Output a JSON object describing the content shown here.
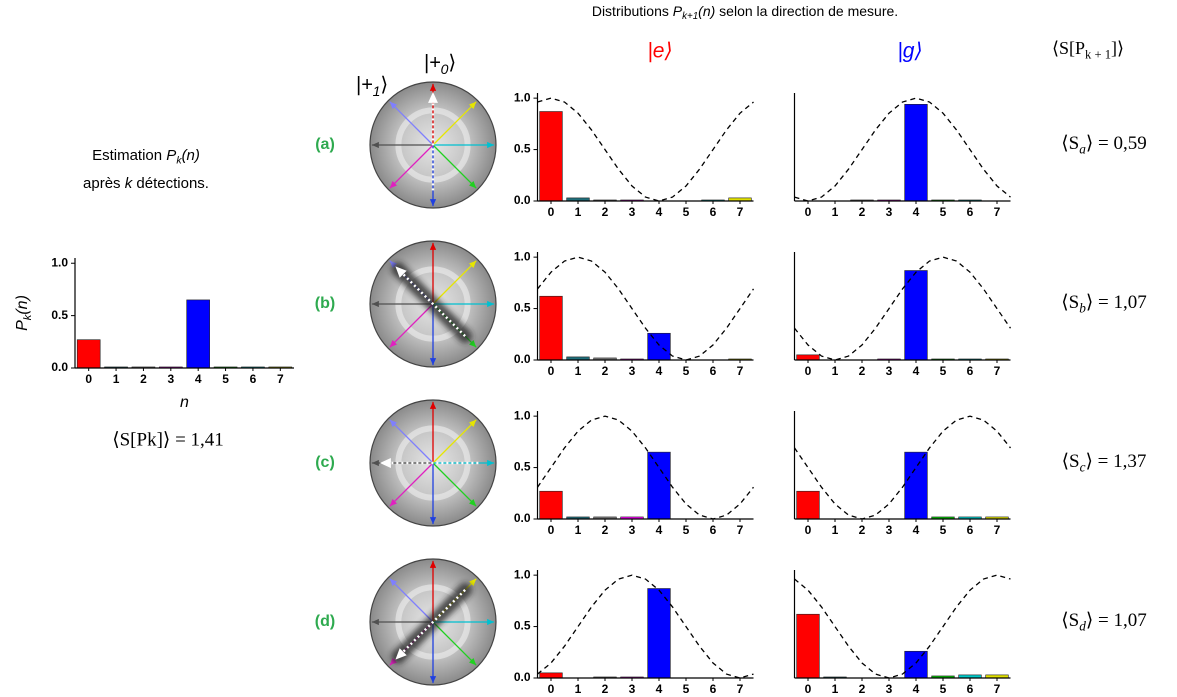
{
  "header": {
    "text1": "Distributions ",
    "sym": "P",
    "sub": "k+1",
    "arg": "(n)",
    "text2": " selon la direction de mesure."
  },
  "column_labels": [
    {
      "text": "|e⟩",
      "color": "#ff0000"
    },
    {
      "text": "|g⟩",
      "color": "#0000ff"
    }
  ],
  "entropy_header": {
    "text1": "⟨S[P",
    "sub": "k + 1",
    "text2": "]⟩"
  },
  "estimation": {
    "text1": "Estimation ",
    "sym": "P",
    "sub": "k",
    "arg": "(n)",
    "text2": "après ",
    "k": "k",
    "text3": " détections."
  },
  "sphere_labels": [
    {
      "text1": "|+",
      "sub": "1",
      "text2": "⟩"
    },
    {
      "text1": "|+",
      "sub": "0",
      "text2": "⟩"
    }
  ],
  "initial_entropy": "⟨S[Pk]⟩ = 1,41",
  "rows": [
    {
      "label": "(a)",
      "entropy": {
        "text1": "⟨S",
        "sub": "a",
        "text2": "⟩ = 0,59"
      }
    },
    {
      "label": "(b)",
      "entropy": {
        "text1": "⟨S",
        "sub": "b",
        "text2": "⟩ = 1,07"
      }
    },
    {
      "label": "(c)",
      "entropy": {
        "text1": "⟨S",
        "sub": "c",
        "text2": "⟩ = 1,37"
      }
    },
    {
      "label": "(d)",
      "entropy": {
        "text1": "⟨S",
        "sub": "d",
        "text2": "⟩ = 1,07"
      }
    }
  ],
  "chart_data": [
    {
      "type": "bar",
      "xlabel": "n",
      "ylabel": {
        "sym": "P",
        "sub": "k",
        "arg": "(n)"
      },
      "categories": [
        "0",
        "1",
        "2",
        "3",
        "4",
        "5",
        "6",
        "7"
      ],
      "values": [
        0.27,
        0.01,
        0.01,
        0.01,
        0.65,
        0.01,
        0.01,
        0.01
      ],
      "colors": [
        "#ff0000",
        "#1f6e7a",
        "#808080",
        "#ff00ff",
        "#0000ff",
        "#00c000",
        "#00c8c8",
        "#e0e000"
      ],
      "xlim": [
        -0.5,
        7.5
      ],
      "ylim": [
        0,
        1.05
      ],
      "yticks": [
        {
          "value": 0,
          "label": "0.0"
        },
        {
          "value": 0.5,
          "label": "0.5"
        },
        {
          "value": 1,
          "label": "1.0"
        }
      ]
    },
    {
      "type": "bar",
      "categories": [
        "0",
        "1",
        "2",
        "3",
        "4",
        "5",
        "6",
        "7"
      ],
      "values": [
        0.87,
        0.03,
        0.01,
        0.01,
        0,
        0,
        0.01,
        0.03
      ],
      "colors": [
        "#ff0000",
        "#1f6e7a",
        "#808080",
        "#ff00ff",
        "#0000ff",
        "#00c000",
        "#00c8c8",
        "#e0e000"
      ],
      "xlim": [
        -0.5,
        7.5
      ],
      "ylim": [
        0,
        1.05
      ],
      "yticks": [
        {
          "value": 0,
          "label": "0.0"
        },
        {
          "value": 0.5,
          "label": "0.5"
        },
        {
          "value": 1,
          "label": "1.0"
        }
      ],
      "curve": {
        "x": [
          -0.5,
          0,
          0.5,
          1,
          1.5,
          2,
          2.5,
          3,
          3.5,
          4,
          4.5,
          5,
          5.5,
          6,
          6.5,
          7,
          7.5
        ],
        "values": [
          0.962,
          1,
          0.962,
          0.854,
          0.691,
          0.5,
          0.309,
          0.146,
          0.038,
          0,
          0.038,
          0.146,
          0.309,
          0.5,
          0.691,
          0.854,
          0.962
        ]
      }
    },
    {
      "type": "bar",
      "categories": [
        "0",
        "1",
        "2",
        "3",
        "4",
        "5",
        "6",
        "7"
      ],
      "values": [
        0,
        0,
        0.01,
        0.01,
        0.94,
        0.01,
        0.01,
        0
      ],
      "colors": [
        "#ff0000",
        "#1f6e7a",
        "#808080",
        "#ff00ff",
        "#0000ff",
        "#00c000",
        "#00c8c8",
        "#e0e000"
      ],
      "xlim": [
        -0.5,
        7.5
      ],
      "ylim": [
        0,
        1.05
      ],
      "curve": {
        "x": [
          -0.5,
          0,
          0.5,
          1,
          1.5,
          2,
          2.5,
          3,
          3.5,
          4,
          4.5,
          5,
          5.5,
          6,
          6.5,
          7,
          7.5
        ],
        "values": [
          0.038,
          0,
          0.038,
          0.146,
          0.309,
          0.5,
          0.691,
          0.854,
          0.962,
          1,
          0.962,
          0.854,
          0.691,
          0.5,
          0.309,
          0.146,
          0.038
        ]
      }
    },
    {
      "type": "bar",
      "categories": [
        "0",
        "1",
        "2",
        "3",
        "4",
        "5",
        "6",
        "7"
      ],
      "values": [
        0.62,
        0.03,
        0.02,
        0.01,
        0.26,
        0,
        0,
        0.01
      ],
      "colors": [
        "#ff0000",
        "#1f6e7a",
        "#808080",
        "#ff00ff",
        "#0000ff",
        "#00c000",
        "#00c8c8",
        "#e0e000"
      ],
      "xlim": [
        -0.5,
        7.5
      ],
      "ylim": [
        0,
        1.05
      ],
      "yticks": [
        {
          "value": 0,
          "label": "0.0"
        },
        {
          "value": 0.5,
          "label": "0.5"
        },
        {
          "value": 1,
          "label": "1.0"
        }
      ],
      "curve": {
        "x": [
          -0.5,
          0,
          0.5,
          1,
          1.5,
          2,
          2.5,
          3,
          3.5,
          4,
          4.5,
          5,
          5.5,
          6,
          6.5,
          7,
          7.5
        ],
        "values": [
          0.691,
          0.854,
          0.962,
          1,
          0.962,
          0.854,
          0.691,
          0.5,
          0.309,
          0.146,
          0.038,
          0,
          0.038,
          0.146,
          0.309,
          0.5,
          0.691
        ]
      }
    },
    {
      "type": "bar",
      "categories": [
        "0",
        "1",
        "2",
        "3",
        "4",
        "5",
        "6",
        "7"
      ],
      "values": [
        0.05,
        0,
        0,
        0.01,
        0.87,
        0.01,
        0.01,
        0.01
      ],
      "colors": [
        "#ff0000",
        "#1f6e7a",
        "#808080",
        "#ff00ff",
        "#0000ff",
        "#00c000",
        "#00c8c8",
        "#e0e000"
      ],
      "xlim": [
        -0.5,
        7.5
      ],
      "ylim": [
        0,
        1.05
      ],
      "curve": {
        "x": [
          -0.5,
          0,
          0.5,
          1,
          1.5,
          2,
          2.5,
          3,
          3.5,
          4,
          4.5,
          5,
          5.5,
          6,
          6.5,
          7,
          7.5
        ],
        "values": [
          0.309,
          0.146,
          0.038,
          0,
          0.038,
          0.146,
          0.309,
          0.5,
          0.691,
          0.854,
          0.962,
          1,
          0.962,
          0.854,
          0.691,
          0.5,
          0.309
        ]
      }
    },
    {
      "type": "bar",
      "categories": [
        "0",
        "1",
        "2",
        "3",
        "4",
        "5",
        "6",
        "7"
      ],
      "values": [
        0.27,
        0.02,
        0.02,
        0.02,
        0.65,
        0,
        0,
        0
      ],
      "colors": [
        "#ff0000",
        "#1f6e7a",
        "#808080",
        "#ff00ff",
        "#0000ff",
        "#00c000",
        "#00c8c8",
        "#e0e000"
      ],
      "xlim": [
        -0.5,
        7.5
      ],
      "ylim": [
        0,
        1.05
      ],
      "yticks": [
        {
          "value": 0,
          "label": "0.0"
        },
        {
          "value": 0.5,
          "label": "0.5"
        },
        {
          "value": 1,
          "label": "1.0"
        }
      ],
      "curve": {
        "x": [
          -0.5,
          0,
          0.5,
          1,
          1.5,
          2,
          2.5,
          3,
          3.5,
          4,
          4.5,
          5,
          5.5,
          6,
          6.5,
          7,
          7.5
        ],
        "values": [
          0.309,
          0.5,
          0.691,
          0.854,
          0.962,
          1,
          0.962,
          0.854,
          0.691,
          0.5,
          0.309,
          0.146,
          0.038,
          0,
          0.038,
          0.146,
          0.309
        ]
      }
    },
    {
      "type": "bar",
      "categories": [
        "0",
        "1",
        "2",
        "3",
        "4",
        "5",
        "6",
        "7"
      ],
      "values": [
        0.27,
        0,
        0,
        0,
        0.65,
        0.02,
        0.02,
        0.02
      ],
      "colors": [
        "#ff0000",
        "#1f6e7a",
        "#808080",
        "#ff00ff",
        "#0000ff",
        "#00c000",
        "#00c8c8",
        "#e0e000"
      ],
      "xlim": [
        -0.5,
        7.5
      ],
      "ylim": [
        0,
        1.05
      ],
      "curve": {
        "x": [
          -0.5,
          0,
          0.5,
          1,
          1.5,
          2,
          2.5,
          3,
          3.5,
          4,
          4.5,
          5,
          5.5,
          6,
          6.5,
          7,
          7.5
        ],
        "values": [
          0.691,
          0.5,
          0.309,
          0.146,
          0.038,
          0,
          0.038,
          0.146,
          0.309,
          0.5,
          0.691,
          0.854,
          0.962,
          1,
          0.962,
          0.854,
          0.691
        ]
      }
    },
    {
      "type": "bar",
      "categories": [
        "0",
        "1",
        "2",
        "3",
        "4",
        "5",
        "6",
        "7"
      ],
      "values": [
        0.05,
        0,
        0.01,
        0.01,
        0.87,
        0,
        0,
        0
      ],
      "colors": [
        "#ff0000",
        "#1f6e7a",
        "#808080",
        "#ff00ff",
        "#0000ff",
        "#00c000",
        "#00c8c8",
        "#e0e000"
      ],
      "xlim": [
        -0.5,
        7.5
      ],
      "ylim": [
        0,
        1.05
      ],
      "yticks": [
        {
          "value": 0,
          "label": "0.0"
        },
        {
          "value": 0.5,
          "label": "0.5"
        },
        {
          "value": 1,
          "label": "1.0"
        }
      ],
      "curve": {
        "x": [
          -0.5,
          0,
          0.5,
          1,
          1.5,
          2,
          2.5,
          3,
          3.5,
          4,
          4.5,
          5,
          5.5,
          6,
          6.5,
          7,
          7.5
        ],
        "values": [
          0.038,
          0.146,
          0.309,
          0.5,
          0.691,
          0.854,
          0.962,
          1,
          0.962,
          0.854,
          0.691,
          0.5,
          0.309,
          0.146,
          0.038,
          0,
          0.038
        ]
      }
    },
    {
      "type": "bar",
      "categories": [
        "0",
        "1",
        "2",
        "3",
        "4",
        "5",
        "6",
        "7"
      ],
      "values": [
        0.62,
        0.01,
        0,
        0,
        0.26,
        0.02,
        0.03,
        0.03
      ],
      "colors": [
        "#ff0000",
        "#1f6e7a",
        "#808080",
        "#ff00ff",
        "#0000ff",
        "#00c000",
        "#00c8c8",
        "#e0e000"
      ],
      "xlim": [
        -0.5,
        7.5
      ],
      "ylim": [
        0,
        1.05
      ],
      "curve": {
        "x": [
          -0.5,
          0,
          0.5,
          1,
          1.5,
          2,
          2.5,
          3,
          3.5,
          4,
          4.5,
          5,
          5.5,
          6,
          6.5,
          7,
          7.5
        ],
        "values": [
          0.962,
          0.854,
          0.691,
          0.5,
          0.309,
          0.146,
          0.038,
          0,
          0.038,
          0.146,
          0.309,
          0.5,
          0.691,
          0.854,
          0.962,
          1,
          0.962
        ]
      }
    }
  ]
}
